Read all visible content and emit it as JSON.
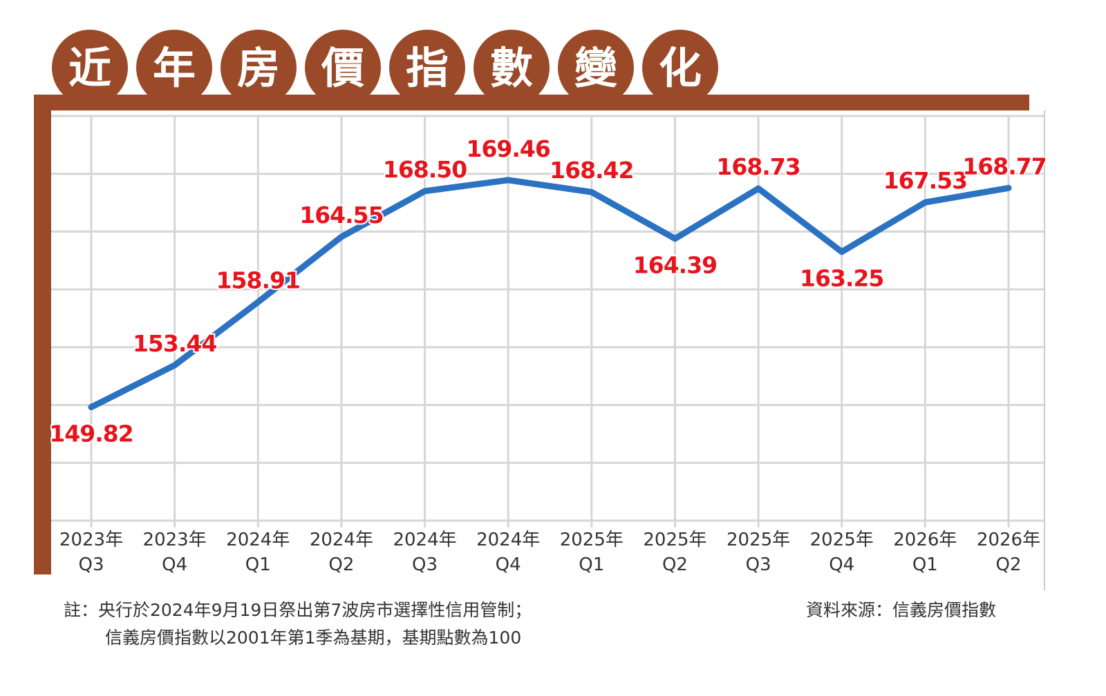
{
  "title_chars": [
    "近",
    "年",
    "房",
    "價",
    "指",
    "數",
    "變",
    "化"
  ],
  "colors": {
    "brand_brown": "#9a4a28",
    "line_blue": "#2b72c2",
    "label_red": "#e8141c",
    "grid": "#d6d6d6"
  },
  "chart_data": {
    "type": "line",
    "title": "近年房價指數變化",
    "categories": [
      [
        "2023年",
        "Q3"
      ],
      [
        "2023年",
        "Q4"
      ],
      [
        "2024年",
        "Q1"
      ],
      [
        "2024年",
        "Q2"
      ],
      [
        "2024年",
        "Q3"
      ],
      [
        "2024年",
        "Q4"
      ],
      [
        "2025年",
        "Q1"
      ],
      [
        "2025年",
        "Q2"
      ],
      [
        "2025年",
        "Q3"
      ],
      [
        "2025年",
        "Q4"
      ],
      [
        "2026年",
        "Q1"
      ],
      [
        "2026年",
        "Q2"
      ]
    ],
    "values": [
      149.82,
      153.44,
      158.91,
      164.55,
      168.5,
      169.46,
      168.42,
      164.39,
      168.73,
      163.25,
      167.53,
      168.77
    ],
    "value_labels": [
      "149.82",
      "153.44",
      "158.91",
      "164.55",
      "168.50",
      "169.46",
      "168.42",
      "164.39",
      "168.73",
      "163.25",
      "167.53",
      "168.77"
    ],
    "label_position": [
      "below",
      "above",
      "above",
      "above",
      "above",
      "above",
      "above",
      "below",
      "above",
      "below",
      "above",
      "above"
    ],
    "ylim": [
      140,
      175
    ],
    "grid": true,
    "legend": "none"
  },
  "notes": {
    "note_line1": "註：央行於2024年9月19日祭出第7波房市選擇性信用管制；",
    "note_line2": "信義房價指數以2001年第1季為基期，基期點數為100",
    "source": "資料來源：信義房價指數"
  }
}
